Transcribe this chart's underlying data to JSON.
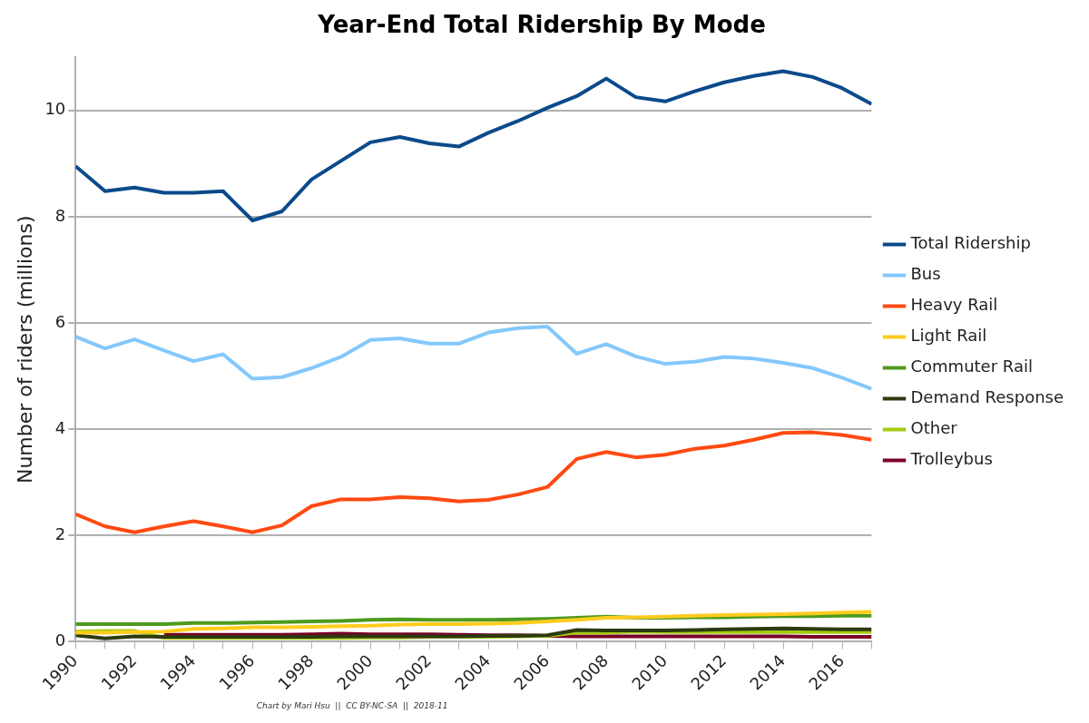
{
  "chart_data": {
    "type": "line",
    "title": "Year-End Total Ridership By Mode",
    "ylabel": "Number of riders (millions)",
    "x": [
      1990,
      1991,
      1992,
      1993,
      1994,
      1995,
      1996,
      1997,
      1998,
      1999,
      2000,
      2001,
      2002,
      2003,
      2004,
      2005,
      2006,
      2007,
      2008,
      2009,
      2010,
      2011,
      2012,
      2013,
      2014,
      2015,
      2016,
      2017
    ],
    "series": [
      {
        "name": "Total Ridership",
        "color": "#0b4a8b",
        "values": [
          8.95,
          8.48,
          8.55,
          8.45,
          8.45,
          8.48,
          7.93,
          8.1,
          8.7,
          9.05,
          9.4,
          9.5,
          9.38,
          9.32,
          9.58,
          9.8,
          10.05,
          10.27,
          10.6,
          10.25,
          10.17,
          10.36,
          10.53,
          10.65,
          10.74,
          10.63,
          10.42,
          10.12
        ]
      },
      {
        "name": "Bus",
        "color": "#84c8fc",
        "values": [
          5.74,
          5.52,
          5.69,
          5.48,
          5.28,
          5.41,
          4.95,
          4.98,
          5.15,
          5.36,
          5.68,
          5.71,
          5.61,
          5.61,
          5.82,
          5.9,
          5.93,
          5.42,
          5.6,
          5.37,
          5.23,
          5.27,
          5.36,
          5.33,
          5.25,
          5.15,
          4.97,
          4.76
        ]
      },
      {
        "name": "Heavy Rail",
        "color": "#ff4a11",
        "values": [
          2.4,
          2.17,
          2.06,
          2.17,
          2.27,
          2.17,
          2.06,
          2.19,
          2.55,
          2.68,
          2.68,
          2.72,
          2.7,
          2.64,
          2.67,
          2.77,
          2.91,
          3.44,
          3.57,
          3.47,
          3.52,
          3.63,
          3.69,
          3.8,
          3.93,
          3.94,
          3.89,
          3.8
        ]
      },
      {
        "name": "Light Rail",
        "color": "#ffcc1e",
        "values": [
          0.17,
          0.17,
          0.18,
          0.19,
          0.24,
          0.25,
          0.27,
          0.27,
          0.28,
          0.29,
          0.3,
          0.32,
          0.33,
          0.33,
          0.34,
          0.35,
          0.38,
          0.41,
          0.45,
          0.46,
          0.47,
          0.49,
          0.5,
          0.51,
          0.52,
          0.53,
          0.55,
          0.56
        ]
      },
      {
        "name": "Commuter Rail",
        "color": "#4e9a1e",
        "values": [
          0.33,
          0.33,
          0.33,
          0.33,
          0.35,
          0.35,
          0.36,
          0.37,
          0.38,
          0.39,
          0.41,
          0.42,
          0.41,
          0.41,
          0.41,
          0.42,
          0.43,
          0.45,
          0.47,
          0.45,
          0.45,
          0.46,
          0.46,
          0.47,
          0.48,
          0.48,
          0.49,
          0.49
        ]
      },
      {
        "name": "Demand Response",
        "color": "#2d3a0f",
        "values": [
          0.12,
          0.06,
          0.1,
          0.09,
          0.09,
          0.09,
          0.09,
          0.09,
          0.09,
          0.1,
          0.1,
          0.1,
          0.1,
          0.1,
          0.11,
          0.11,
          0.12,
          0.22,
          0.21,
          0.21,
          0.21,
          0.22,
          0.23,
          0.24,
          0.25,
          0.24,
          0.23,
          0.23
        ]
      },
      {
        "name": "Other",
        "color": "#a4cb10",
        "values": [
          0.19,
          0.2,
          0.2,
          0.07,
          0.07,
          0.07,
          0.07,
          0.07,
          0.07,
          0.07,
          0.08,
          0.08,
          0.09,
          0.09,
          0.09,
          0.1,
          0.11,
          0.17,
          0.17,
          0.19,
          0.18,
          0.18,
          0.18,
          0.18,
          0.18,
          0.18,
          0.18,
          0.18
        ]
      },
      {
        "name": "Trolleybus",
        "color": "#7a0026",
        "values": [
          null,
          null,
          null,
          0.13,
          0.13,
          0.13,
          0.13,
          0.13,
          0.14,
          0.15,
          0.14,
          0.14,
          0.14,
          0.13,
          0.12,
          0.12,
          0.11,
          0.1,
          0.1,
          0.1,
          0.1,
          0.1,
          0.1,
          0.1,
          0.1,
          0.09,
          0.09,
          0.09
        ]
      }
    ],
    "xlim": [
      1990,
      2017
    ],
    "xticks": [
      1990,
      {
        "value": 1991,
        "label": null
      },
      1992,
      {
        "value": 1993,
        "label": null
      },
      1994,
      {
        "value": 1995,
        "label": null
      },
      1996,
      {
        "value": 1997,
        "label": null
      },
      1998,
      {
        "value": 1999,
        "label": null
      },
      2000,
      {
        "value": 2001,
        "label": null
      },
      2002,
      {
        "value": 2003,
        "label": null
      },
      2004,
      {
        "value": 2005,
        "label": null
      },
      2006,
      {
        "value": 2007,
        "label": null
      },
      2008,
      {
        "value": 2009,
        "label": null
      },
      2010,
      {
        "value": 2011,
        "label": null
      },
      2012,
      {
        "value": 2013,
        "label": null
      },
      2014,
      {
        "value": 2015,
        "label": null
      },
      2016,
      {
        "value": 2017,
        "label": null
      }
    ],
    "ylim": [
      0,
      11
    ],
    "yticks": [
      0,
      2,
      4,
      6,
      8,
      10
    ],
    "grid": "y",
    "legend": "right",
    "marker": "none",
    "line_style": "solid",
    "annotations": [
      "Chart by Mari Hsu  ||  CC BY-NC-SA  ||  2018-11"
    ]
  }
}
